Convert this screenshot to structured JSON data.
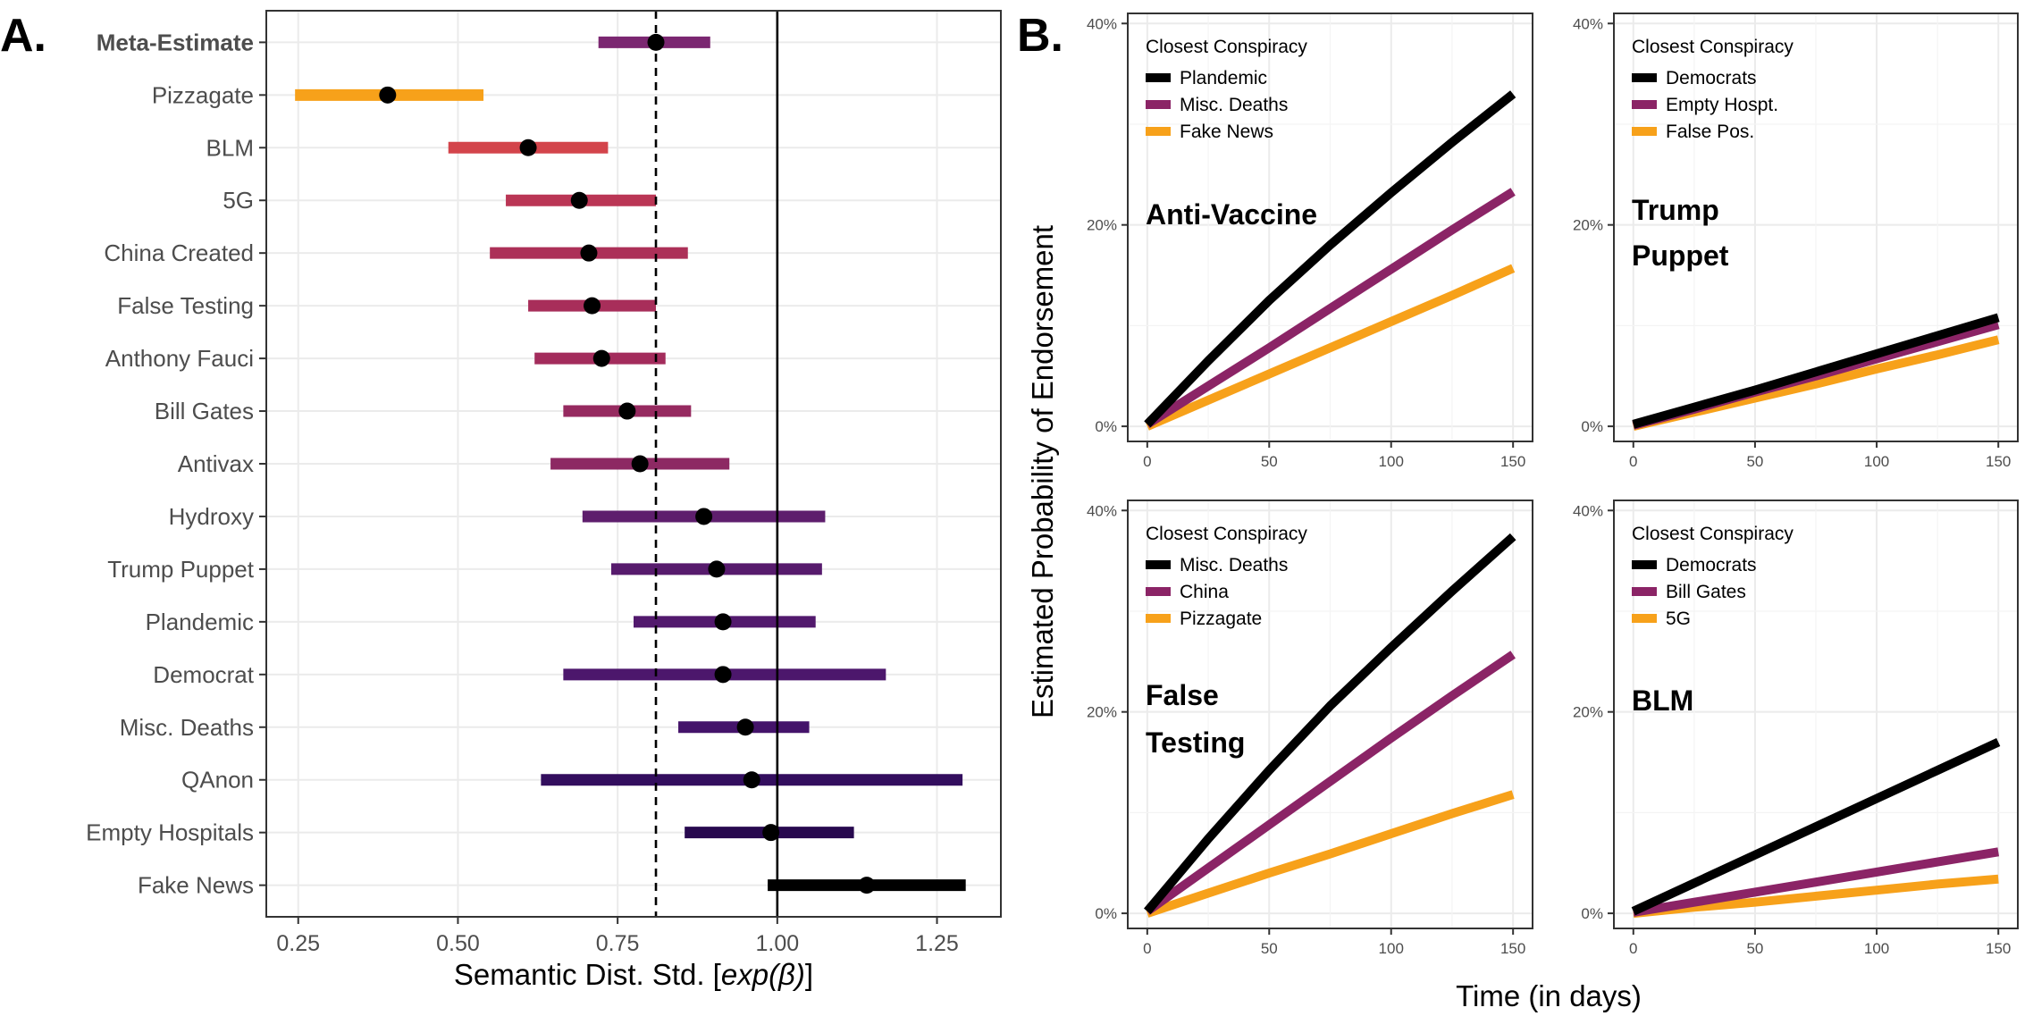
{
  "figure": {
    "panel_a_letter": "A.",
    "panel_b_letter": "B."
  },
  "colors": {
    "grid": "#ebebeb",
    "frame": "#333333",
    "point": "#000000",
    "series_black": "#000000",
    "series_purple": "#8b2466",
    "series_orange": "#f7a11a"
  },
  "chart_data": [
    {
      "type": "forest",
      "panel": "A",
      "xlabel_prefix": "Semantic Dist. Std. [",
      "xlabel_math": "exp(β)",
      "xlabel_suffix": "]",
      "xlim": [
        0.2,
        1.35
      ],
      "xticks": [
        0.25,
        0.5,
        0.75,
        1.0,
        1.25
      ],
      "xtick_labels": [
        "0.25",
        "0.50",
        "0.75",
        "1.00",
        "1.25"
      ],
      "reference_line_solid": 1.0,
      "reference_line_dashed": 0.81,
      "grid": true,
      "rows": [
        {
          "label": "Meta-Estimate",
          "bold": true,
          "estimate": 0.81,
          "lo": 0.72,
          "hi": 0.895,
          "color": "#7b2771"
        },
        {
          "label": "Pizzagate",
          "estimate": 0.39,
          "lo": 0.245,
          "hi": 0.54,
          "color": "#f7a11a"
        },
        {
          "label": "BLM",
          "estimate": 0.61,
          "lo": 0.485,
          "hi": 0.735,
          "color": "#d3444b"
        },
        {
          "label": "5G",
          "estimate": 0.69,
          "lo": 0.575,
          "hi": 0.81,
          "color": "#ba3655"
        },
        {
          "label": "China Created",
          "estimate": 0.705,
          "lo": 0.55,
          "hi": 0.86,
          "color": "#ac3058"
        },
        {
          "label": "False Testing",
          "estimate": 0.71,
          "lo": 0.61,
          "hi": 0.81,
          "color": "#a82e5a"
        },
        {
          "label": "Anthony Fauci",
          "estimate": 0.725,
          "lo": 0.62,
          "hi": 0.825,
          "color": "#a32c5c"
        },
        {
          "label": "Bill Gates",
          "estimate": 0.765,
          "lo": 0.665,
          "hi": 0.865,
          "color": "#962a60"
        },
        {
          "label": "Antivax",
          "estimate": 0.785,
          "lo": 0.645,
          "hi": 0.925,
          "color": "#8d2963"
        },
        {
          "label": "Hydroxy",
          "estimate": 0.885,
          "lo": 0.695,
          "hi": 1.075,
          "color": "#5e1e6d"
        },
        {
          "label": "Trump Puppet",
          "estimate": 0.905,
          "lo": 0.74,
          "hi": 1.07,
          "color": "#571b6d"
        },
        {
          "label": "Plandemic",
          "estimate": 0.915,
          "lo": 0.775,
          "hi": 1.06,
          "color": "#52196d"
        },
        {
          "label": "Democrat",
          "estimate": 0.915,
          "lo": 0.665,
          "hi": 1.17,
          "color": "#4c176c"
        },
        {
          "label": "Misc. Deaths",
          "estimate": 0.95,
          "lo": 0.845,
          "hi": 1.05,
          "color": "#44136a"
        },
        {
          "label": "QAnon",
          "estimate": 0.96,
          "lo": 0.63,
          "hi": 1.29,
          "color": "#330e5e"
        },
        {
          "label": "Empty Hospitals",
          "estimate": 0.99,
          "lo": 0.855,
          "hi": 1.12,
          "color": "#28094f"
        },
        {
          "label": "Fake News",
          "estimate": 1.14,
          "lo": 0.985,
          "hi": 1.295,
          "color": "#000000"
        }
      ]
    },
    {
      "type": "line",
      "panel": "B",
      "xlabel": "Time (in days)",
      "ylabel": "Estimated Probability of Endorsement",
      "xlim": [
        -8,
        158
      ],
      "ylim": [
        -0.015,
        0.41
      ],
      "xticks": [
        0,
        50,
        100,
        150
      ],
      "yticks": [
        0,
        0.2,
        0.4
      ],
      "ytick_labels": [
        "0%",
        "20%",
        "40%"
      ],
      "legend_title": "Closest Conspiracy",
      "legend_position": "top-left",
      "grid": true,
      "facets": [
        {
          "facet": "Anti-Vaccine",
          "facet_lines": [
            "Anti-Vaccine"
          ],
          "series": [
            {
              "name": "Plandemic",
              "color": "#000000",
              "x": [
                0,
                25,
                50,
                75,
                100,
                125,
                150
              ],
              "y": [
                0.002,
                0.065,
                0.125,
                0.18,
                0.232,
                0.282,
                0.33
              ]
            },
            {
              "name": "Misc. Deaths",
              "color": "#8b2466",
              "x": [
                0,
                25,
                50,
                75,
                100,
                125,
                150
              ],
              "y": [
                0.002,
                0.04,
                0.078,
                0.117,
                0.156,
                0.195,
                0.233
              ]
            },
            {
              "name": "Fake News",
              "color": "#f7a11a",
              "x": [
                0,
                25,
                50,
                75,
                100,
                125,
                150
              ],
              "y": [
                0.0,
                0.026,
                0.052,
                0.078,
                0.104,
                0.13,
                0.157
              ]
            }
          ]
        },
        {
          "facet": "Trump Puppet",
          "facet_lines": [
            "Trump",
            "Puppet"
          ],
          "series": [
            {
              "name": "Democrats",
              "color": "#000000",
              "x": [
                0,
                25,
                50,
                75,
                100,
                125,
                150
              ],
              "y": [
                0.002,
                0.019,
                0.036,
                0.054,
                0.072,
                0.09,
                0.108
              ]
            },
            {
              "name": "Empty Hospt.",
              "color": "#8b2466",
              "x": [
                0,
                25,
                50,
                75,
                100,
                125,
                150
              ],
              "y": [
                0.001,
                0.017,
                0.034,
                0.05,
                0.067,
                0.084,
                0.101
              ]
            },
            {
              "name": "False Pos.",
              "color": "#f7a11a",
              "x": [
                0,
                25,
                50,
                75,
                100,
                125,
                150
              ],
              "y": [
                0.0,
                0.014,
                0.028,
                0.042,
                0.057,
                0.071,
                0.086
              ]
            }
          ]
        },
        {
          "facet": "False Testing",
          "facet_lines": [
            "False",
            "Testing"
          ],
          "series": [
            {
              "name": "Misc. Deaths",
              "color": "#000000",
              "x": [
                0,
                25,
                50,
                75,
                100,
                125,
                150
              ],
              "y": [
                0.002,
                0.074,
                0.142,
                0.206,
                0.264,
                0.32,
                0.374
              ]
            },
            {
              "name": "China",
              "color": "#8b2466",
              "x": [
                0,
                25,
                50,
                75,
                100,
                125,
                150
              ],
              "y": [
                0.002,
                0.045,
                0.088,
                0.131,
                0.174,
                0.216,
                0.257
              ]
            },
            {
              "name": "Pizzagate",
              "color": "#f7a11a",
              "x": [
                0,
                25,
                50,
                75,
                100,
                125,
                150
              ],
              "y": [
                0.0,
                0.02,
                0.04,
                0.059,
                0.079,
                0.099,
                0.118
              ]
            }
          ]
        },
        {
          "facet": "BLM",
          "facet_lines": [
            "BLM"
          ],
          "series": [
            {
              "name": "Democrats",
              "color": "#000000",
              "x": [
                0,
                25,
                50,
                75,
                100,
                125,
                150
              ],
              "y": [
                0.002,
                0.03,
                0.058,
                0.086,
                0.114,
                0.142,
                0.17
              ]
            },
            {
              "name": "Bill Gates",
              "color": "#8b2466",
              "x": [
                0,
                25,
                50,
                75,
                100,
                125,
                150
              ],
              "y": [
                0.001,
                0.011,
                0.021,
                0.031,
                0.041,
                0.051,
                0.061
              ]
            },
            {
              "name": "5G",
              "color": "#f7a11a",
              "x": [
                0,
                25,
                50,
                75,
                100,
                125,
                150
              ],
              "y": [
                0.0,
                0.006,
                0.011,
                0.017,
                0.023,
                0.029,
                0.034
              ]
            }
          ]
        }
      ]
    }
  ]
}
